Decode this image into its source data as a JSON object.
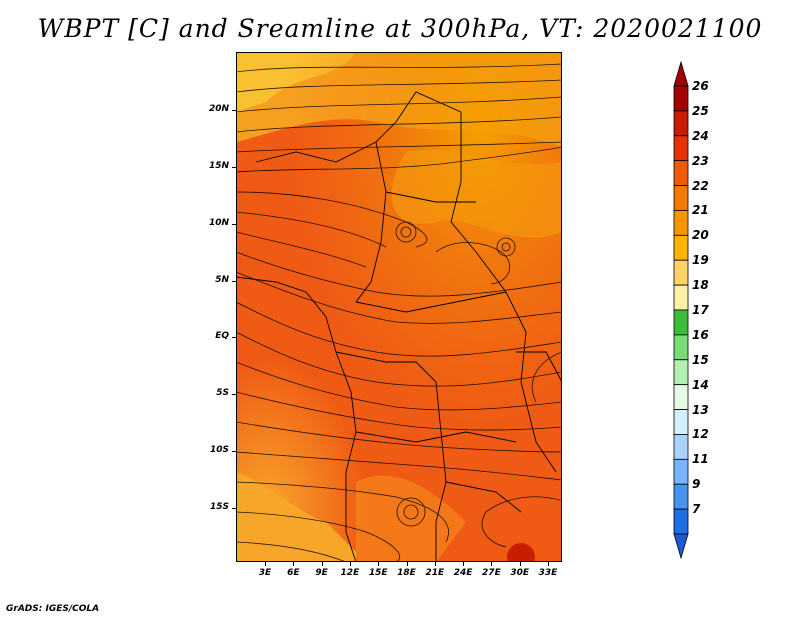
{
  "title": "WBPT [C] and Sreamline at 300hPa, VT: 2020021100",
  "footer": "GrADS: IGES/COLA",
  "map": {
    "region": "Africa (central/east)",
    "lat_labels": [
      "20N",
      "15N",
      "10N",
      "5N",
      "EQ",
      "5S",
      "10S",
      "15S"
    ],
    "lon_labels": [
      "3E",
      "6E",
      "9E",
      "12E",
      "15E",
      "18E",
      "21E",
      "24E",
      "27E",
      "30E",
      "33E"
    ]
  },
  "colorbar": {
    "labels": [
      "26",
      "25",
      "24",
      "23",
      "22",
      "21",
      "20",
      "19",
      "18",
      "17",
      "16",
      "15",
      "14",
      "13",
      "12",
      "11",
      "9",
      "7"
    ],
    "colors": [
      "#a50000",
      "#c81e00",
      "#e63200",
      "#f05a00",
      "#f57800",
      "#fa9600",
      "#fdb400",
      "#fed264",
      "#fff0aa",
      "#3cbe3c",
      "#78dc78",
      "#b4f0b4",
      "#e6fae6",
      "#d2f0ff",
      "#aad2ff",
      "#78b4ff",
      "#4696f0",
      "#1e6ee6"
    ]
  }
}
